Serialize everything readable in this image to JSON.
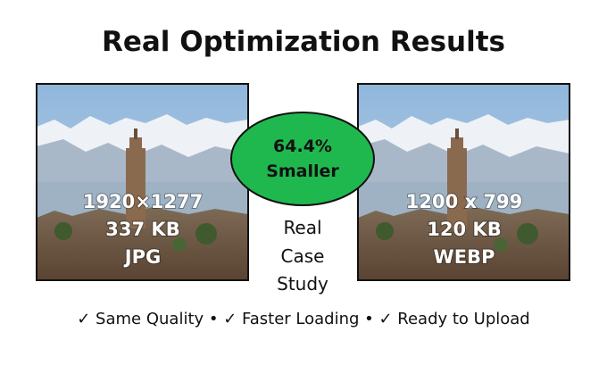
{
  "title": "Real Optimization Results",
  "before": {
    "dimensions": "1920×1277",
    "size": "337 KB",
    "format": "JPG"
  },
  "after": {
    "dimensions": "1200 x 799",
    "size": "120 KB",
    "format": "WEBP"
  },
  "badge": {
    "percent": "64.4%",
    "label": "Smaller"
  },
  "case_label": [
    "Real",
    "Case",
    "Study"
  ],
  "footer": "✓ Same Quality • ✓ Faster Loading • ✓ Ready to Upload"
}
